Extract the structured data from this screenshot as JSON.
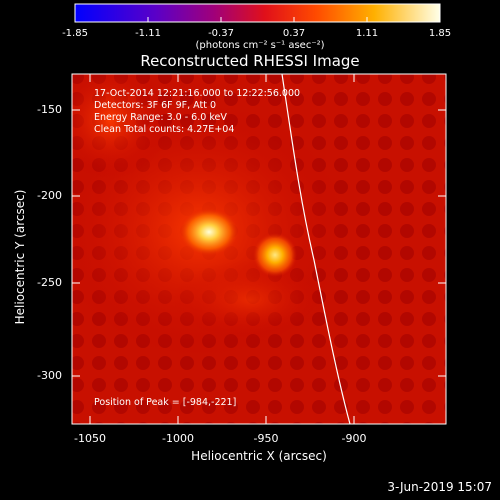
{
  "colorbar": {
    "ticks": [
      "-1.85",
      "-1.11",
      "-0.37",
      "0.37",
      "1.11",
      "1.85"
    ],
    "unit_label": "(photons cm⁻² s⁻¹ asec⁻²)"
  },
  "plot": {
    "title": "Reconstructed RHESSI Image",
    "xlabel": "Heliocentric X (arcsec)",
    "ylabel": "Heliocentric Y (arcsec)",
    "xticks": [
      "-1050",
      "-1000",
      "-950",
      "-900"
    ],
    "yticks": [
      "-150",
      "-200",
      "-250",
      "-300"
    ]
  },
  "info": {
    "time_range": "17-Oct-2014 12:21:16.000 to 12:22:56.000",
    "detectors": "Detectors: 3F 6F 9F, Att 0",
    "energy": "Energy Range: 3.0 - 6.0 keV",
    "clean": "Clean    Total counts: 4.27E+04",
    "peak": "Position of Peak = [-984,-221]"
  },
  "footer": {
    "date": "3-Jun-2019 15:07"
  }
}
